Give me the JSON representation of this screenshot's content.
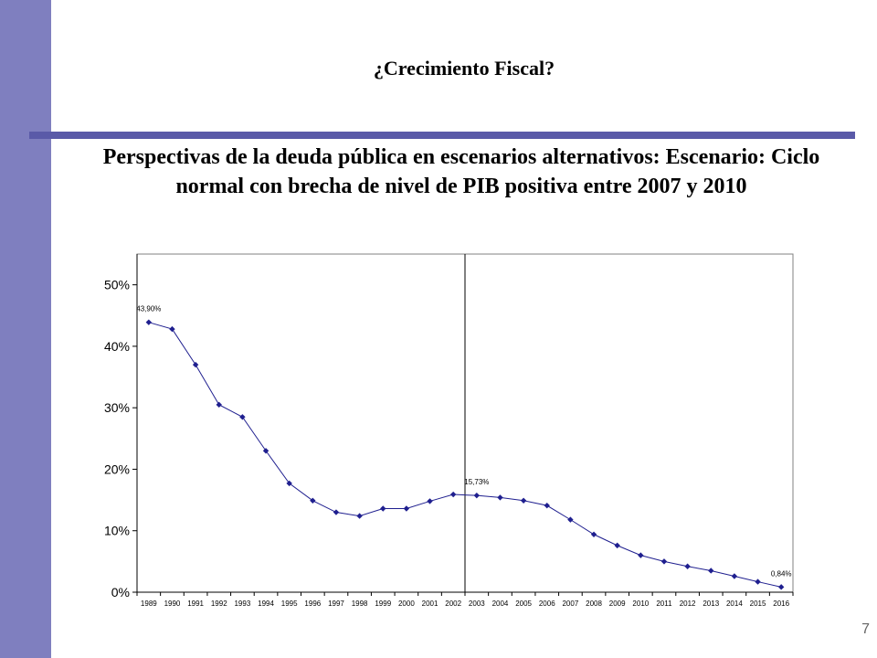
{
  "slide": {
    "title": "¿Crecimiento Fiscal?",
    "heading": "Perspectivas de la deuda pública en escenarios alternativos: Escenario: Ciclo normal con brecha de nivel de PIB positiva entre 2007 y 2010",
    "page_number": "7",
    "colors": {
      "sidebar": "#7f7fbf",
      "rule": "#5a5aa8",
      "series": "#1f1f8f"
    }
  },
  "chart_data": {
    "type": "line",
    "title": "",
    "xlabel": "",
    "ylabel": "",
    "ylim": [
      0,
      0.55
    ],
    "y_ticks": [
      "0%",
      "10%",
      "20%",
      "30%",
      "40%",
      "50%"
    ],
    "y_tick_values": [
      0,
      0.1,
      0.2,
      0.3,
      0.4,
      0.5
    ],
    "categories": [
      "1989",
      "1990",
      "1991",
      "1992",
      "1993",
      "1994",
      "1995",
      "1996",
      "1997",
      "1998",
      "1999",
      "2000",
      "2001",
      "2002",
      "2003",
      "2004",
      "2005",
      "2006",
      "2007",
      "2008",
      "2009",
      "2010",
      "2011",
      "2012",
      "2013",
      "2014",
      "2015",
      "2016"
    ],
    "series": [
      {
        "values": [
          0.439,
          0.428,
          0.37,
          0.305,
          0.285,
          0.23,
          0.177,
          0.149,
          0.13,
          0.124,
          0.136,
          0.136,
          0.148,
          0.159,
          0.1573,
          0.154,
          0.149,
          0.141,
          0.118,
          0.094,
          0.076,
          0.06,
          0.05,
          0.042,
          0.035,
          0.026,
          0.017,
          0.0084
        ]
      }
    ],
    "data_labels": [
      {
        "index": 0,
        "text": "43,90%"
      },
      {
        "index": 14,
        "text": "15,73%"
      },
      {
        "index": 27,
        "text": "0,84%"
      }
    ],
    "divider_between": [
      "2002",
      "2003"
    ],
    "grid": false
  }
}
